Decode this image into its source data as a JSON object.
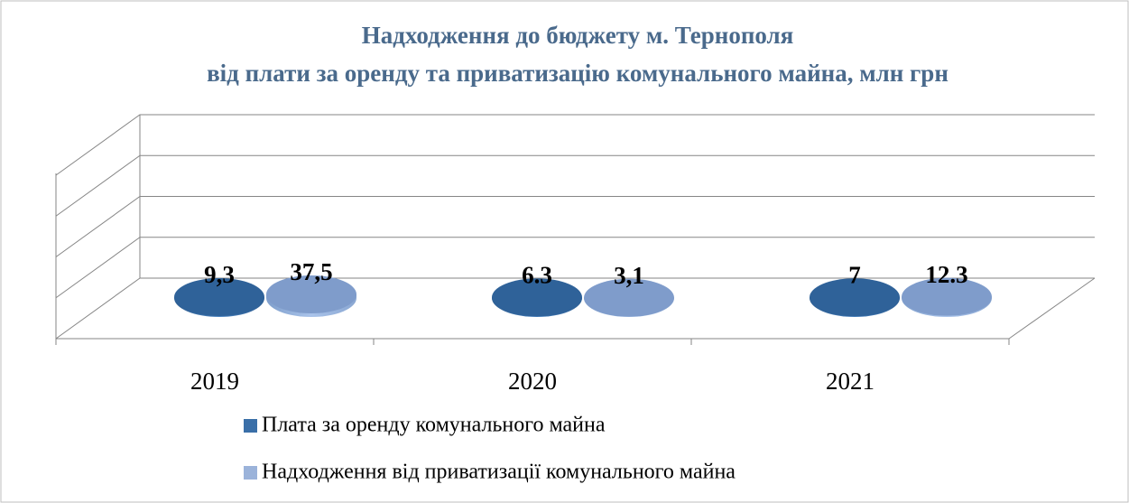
{
  "chart_data": {
    "type": "bar3d",
    "title": "Надходження до бюджету м. Тернополя",
    "subtitle": "від плати за оренду та приватизацію комунального майна, млн грн",
    "categories": [
      "2019",
      "2020",
      "2021"
    ],
    "series": [
      {
        "name": "Плата за оренду комунального майна",
        "color": "#3a6fa8",
        "values": [
          9.3,
          6.3,
          7
        ],
        "value_labels": [
          "9,3",
          "6.3",
          "7"
        ]
      },
      {
        "name": "Надходження від приватизації комунального майна",
        "color": "#9bb3da",
        "values": [
          37.5,
          3.1,
          12.3
        ],
        "value_labels": [
          "37,5",
          "3,1",
          "12.3"
        ]
      }
    ],
    "ylim": [
      0,
      40
    ],
    "yticks": [
      0,
      10,
      20,
      30,
      40
    ],
    "grid": true
  }
}
